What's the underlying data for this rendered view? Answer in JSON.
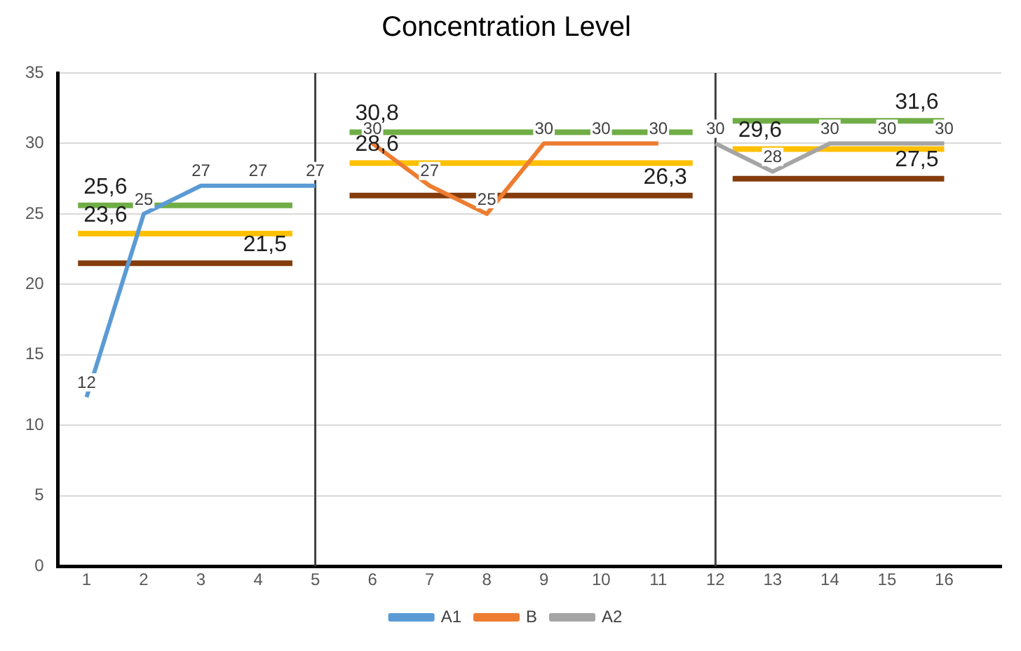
{
  "chart_data": {
    "type": "line",
    "title": "Concentration Level",
    "xlim": [
      0.5,
      17
    ],
    "xticks": [
      1,
      2,
      3,
      4,
      5,
      6,
      7,
      8,
      9,
      10,
      11,
      12,
      13,
      14,
      15,
      16
    ],
    "ylim": [
      0,
      35
    ],
    "yticks": [
      0,
      5,
      10,
      15,
      20,
      25,
      30,
      35
    ],
    "grid": "y",
    "legend": "bottom",
    "marker": "none",
    "ref_lines": [
      {
        "axis": "x",
        "value": 5,
        "color": "#404040"
      },
      {
        "axis": "x",
        "value": 12,
        "color": "#404040"
      }
    ],
    "series": [
      {
        "name": "A1",
        "color": "#5b9bd5",
        "x": [
          1,
          2,
          3,
          4,
          5
        ],
        "values": [
          12,
          25,
          27,
          27,
          27
        ],
        "value_labels": [
          "12",
          "25",
          "27",
          "27",
          "27"
        ]
      },
      {
        "name": "B",
        "color": "#ed7d31",
        "x": [
          6,
          7,
          8,
          9,
          10,
          11
        ],
        "values": [
          30,
          27,
          25,
          30,
          30,
          30
        ],
        "value_labels": [
          "30",
          "27",
          "25",
          "30",
          "30",
          "30"
        ]
      },
      {
        "name": "A2",
        "color": "#a5a5a5",
        "x": [
          12,
          13,
          14,
          15,
          16
        ],
        "values": [
          30,
          28,
          30,
          30,
          30
        ],
        "value_labels": [
          "30",
          "28",
          "30",
          "30",
          "30"
        ]
      },
      {
        "color": "#70ad47",
        "x": [
          0.85,
          4.6
        ],
        "values": [
          25.6,
          25.6
        ],
        "value_labels": [
          "25,6",
          null
        ]
      },
      {
        "color": "#ffc000",
        "x": [
          0.85,
          4.6
        ],
        "values": [
          23.6,
          23.6
        ],
        "value_labels": [
          "23,6",
          null
        ]
      },
      {
        "color": "#843c0c",
        "x": [
          0.85,
          4.6
        ],
        "values": [
          21.5,
          21.5
        ],
        "value_labels": [
          null,
          "21,5"
        ]
      },
      {
        "color": "#70ad47",
        "x": [
          5.6,
          11.6
        ],
        "values": [
          30.8,
          30.8
        ],
        "value_labels": [
          "30,8",
          null
        ]
      },
      {
        "color": "#ffc000",
        "x": [
          5.6,
          11.6
        ],
        "values": [
          28.6,
          28.6
        ],
        "value_labels": [
          "28,6",
          null
        ]
      },
      {
        "color": "#843c0c",
        "x": [
          5.6,
          11.6
        ],
        "values": [
          26.3,
          26.3
        ],
        "value_labels": [
          null,
          "26,3"
        ]
      },
      {
        "color": "#70ad47",
        "x": [
          12.3,
          16
        ],
        "values": [
          31.6,
          31.6
        ],
        "value_labels": [
          null,
          "31,6"
        ]
      },
      {
        "color": "#ffc000",
        "x": [
          12.3,
          16
        ],
        "values": [
          29.6,
          29.6
        ],
        "value_labels": [
          "29,6",
          null
        ]
      },
      {
        "color": "#843c0c",
        "x": [
          12.3,
          16
        ],
        "values": [
          27.5,
          27.5
        ],
        "value_labels": [
          null,
          "27,5"
        ]
      }
    ]
  }
}
